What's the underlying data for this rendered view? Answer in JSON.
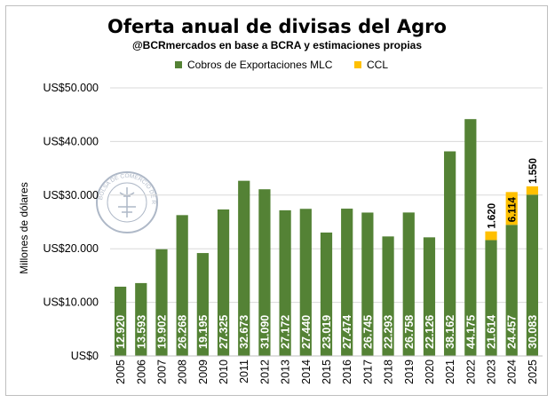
{
  "chart_data": {
    "type": "bar",
    "stacked": true,
    "title": "Oferta anual de divisas del Agro",
    "subtitle": "@BCRmercados en base a BCRA y estimaciones propias",
    "ylabel": "Millones de dólares",
    "xlabel": "",
    "ylim": [
      0,
      50000
    ],
    "yticks": [
      0,
      10000,
      20000,
      30000,
      40000,
      50000
    ],
    "ytick_labels": [
      "US$0",
      "US$10.000",
      "US$20.000",
      "US$30.000",
      "US$40.000",
      "US$50.000"
    ],
    "grid": true,
    "legend_position": "top",
    "categories": [
      "2005",
      "2006",
      "2007",
      "2008",
      "2009",
      "2010",
      "2011",
      "2012",
      "2013",
      "2014",
      "2015",
      "2016",
      "2017",
      "2018",
      "2019",
      "2020",
      "2021",
      "2022",
      "2023",
      "2024",
      "2025"
    ],
    "series": [
      {
        "name": "Cobros de Exportaciones MLC",
        "color": "#548235",
        "values": [
          12920,
          13593,
          19902,
          26268,
          19195,
          27325,
          32673,
          31090,
          27172,
          27440,
          23019,
          27474,
          26745,
          22293,
          26758,
          22126,
          38162,
          44175,
          21614,
          24457,
          30083
        ],
        "labels": [
          "12.920",
          "13.593",
          "19.902",
          "26.268",
          "19.195",
          "27.325",
          "32.673",
          "31.090",
          "27.172",
          "27.440",
          "23.019",
          "27.474",
          "26.745",
          "22.293",
          "26.758",
          "22.126",
          "38.162",
          "44.175",
          "21.614",
          "24.457",
          "30.083"
        ]
      },
      {
        "name": "CCL",
        "color": "#FFC000",
        "values": [
          null,
          null,
          null,
          null,
          null,
          null,
          null,
          null,
          null,
          null,
          null,
          null,
          null,
          null,
          null,
          null,
          null,
          null,
          1620,
          6114,
          1550
        ],
        "labels": [
          null,
          null,
          null,
          null,
          null,
          null,
          null,
          null,
          null,
          null,
          null,
          null,
          null,
          null,
          null,
          null,
          null,
          null,
          "1.620",
          "6.114",
          "1.550"
        ]
      }
    ]
  },
  "watermark": {
    "text": "BOLSA DE COMERCIO DE ROSARIO"
  },
  "colors": {
    "grid": "#d9d9d9",
    "axis": "#000000",
    "data_label_inside": "#ffffff",
    "data_label_outside": "#000000"
  }
}
